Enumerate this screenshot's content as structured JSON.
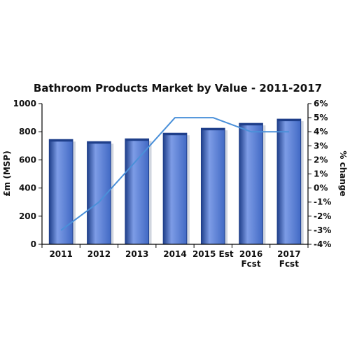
{
  "colors": {
    "bar": "#4169c4",
    "bar_highlight": "#7d9ce6",
    "bar_dark": "#1f3f8a",
    "line": "#4a90d9",
    "axis": "#000000",
    "text": "#111111"
  },
  "chart_data": {
    "type": "bar",
    "title": "Bathroom Products Market by Value - 2011-2017",
    "categories": [
      [
        "2011"
      ],
      [
        "2012"
      ],
      [
        "2013"
      ],
      [
        "2014"
      ],
      [
        "2015 Est"
      ],
      [
        "2016",
        "Fcst"
      ],
      [
        "2017",
        "Fcst"
      ]
    ],
    "series": [
      {
        "type": "bar",
        "axis": "left",
        "values": [
          745,
          730,
          750,
          790,
          825,
          860,
          890
        ]
      },
      {
        "type": "line",
        "axis": "right",
        "values": [
          -3.0,
          -1.0,
          2.0,
          5.0,
          5.0,
          4.0,
          4.0
        ]
      }
    ],
    "y_left": {
      "label": "£m (MSP)",
      "lim": [
        0,
        1000
      ],
      "ticks": [
        "0",
        "200",
        "400",
        "600",
        "800",
        "1000"
      ]
    },
    "y_right": {
      "label": "% change",
      "lim": [
        -4,
        6
      ],
      "ticks": [
        "-4%",
        "-3%",
        "-2%",
        "-1%",
        "0%",
        "1%",
        "2%",
        "3%",
        "4%",
        "5%",
        "6%"
      ]
    },
    "grid": false,
    "legend": "none"
  }
}
